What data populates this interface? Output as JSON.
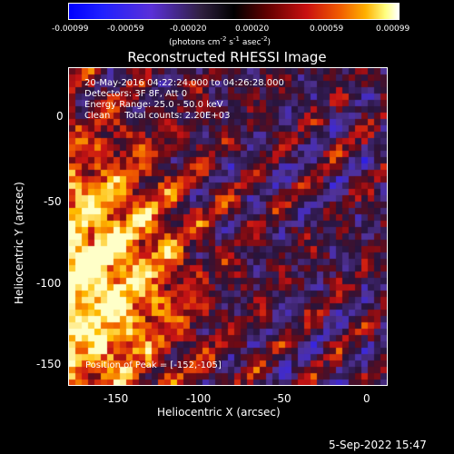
{
  "colorbar": {
    "ticks": [
      "-0.00099",
      "-0.00059",
      "-0.00020",
      "0.00020",
      "0.00059",
      "0.00099"
    ],
    "units": "(photons cm",
    "units_exp1": "-2",
    "units_mid": " s",
    "units_exp2": "-1",
    "units_mid2": " asec",
    "units_exp3": "-2",
    "units_end": ")"
  },
  "title": "Reconstructed RHESSI Image",
  "overlay": {
    "line1": "20-May-2016 04:22:24.000 to 04:26:28.000",
    "line2": "Detectors: 3F 8F, Att 0",
    "line3": "Energy Range: 25.0 - 50.0 keV",
    "line4": "Clean     Total counts: 2.20E+03",
    "peak": "Position of Peak = [-152,-105]"
  },
  "x_axis": {
    "label": "Heliocentric X (arcsec)",
    "ticks": [
      "-150",
      "-100",
      "-50",
      "0"
    ]
  },
  "y_axis": {
    "label": "Heliocentric Y (arcsec)",
    "ticks": [
      "0",
      "-50",
      "-100",
      "-150"
    ]
  },
  "footer_date": "5-Sep-2022 15:47",
  "colors": {
    "background": "#000000",
    "foreground": "#ffffff"
  }
}
